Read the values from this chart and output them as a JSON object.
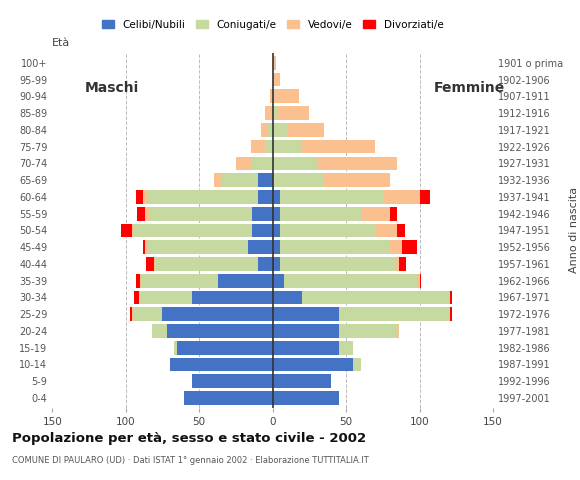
{
  "age_groups": [
    "0-4",
    "5-9",
    "10-14",
    "15-19",
    "20-24",
    "25-29",
    "30-34",
    "35-39",
    "40-44",
    "45-49",
    "50-54",
    "55-59",
    "60-64",
    "65-69",
    "70-74",
    "75-79",
    "80-84",
    "85-89",
    "90-94",
    "95-99",
    "100+"
  ],
  "birth_years": [
    "1997-2001",
    "1992-1996",
    "1987-1991",
    "1982-1986",
    "1977-1981",
    "1972-1976",
    "1967-1971",
    "1962-1966",
    "1957-1961",
    "1952-1956",
    "1947-1951",
    "1942-1946",
    "1937-1941",
    "1932-1936",
    "1927-1931",
    "1922-1926",
    "1917-1921",
    "1912-1916",
    "1907-1911",
    "1902-1906",
    "1901 o prima"
  ],
  "males": {
    "celibi": [
      60,
      55,
      70,
      65,
      72,
      75,
      55,
      37,
      10,
      17,
      14,
      14,
      10,
      10,
      0,
      0,
      0,
      0,
      0,
      0,
      0
    ],
    "coniugati": [
      0,
      0,
      0,
      2,
      10,
      20,
      35,
      52,
      70,
      68,
      80,
      70,
      75,
      25,
      15,
      5,
      3,
      0,
      0,
      0,
      0
    ],
    "vedovi": [
      0,
      0,
      0,
      0,
      0,
      1,
      1,
      1,
      1,
      2,
      2,
      3,
      3,
      5,
      10,
      10,
      5,
      5,
      2,
      0,
      0
    ],
    "divorziati": [
      0,
      0,
      0,
      0,
      0,
      1,
      3,
      3,
      5,
      1,
      7,
      5,
      5,
      0,
      0,
      0,
      0,
      0,
      0,
      0,
      0
    ]
  },
  "females": {
    "celibi": [
      45,
      40,
      55,
      45,
      45,
      45,
      20,
      8,
      5,
      5,
      5,
      5,
      5,
      0,
      0,
      0,
      0,
      0,
      0,
      0,
      0
    ],
    "coniugati": [
      0,
      0,
      5,
      10,
      40,
      75,
      100,
      90,
      78,
      75,
      65,
      55,
      70,
      35,
      30,
      20,
      10,
      3,
      0,
      0,
      0
    ],
    "vedovi": [
      0,
      0,
      0,
      0,
      1,
      1,
      1,
      2,
      3,
      8,
      15,
      20,
      25,
      45,
      55,
      50,
      25,
      22,
      18,
      5,
      2
    ],
    "divorziati": [
      0,
      0,
      0,
      0,
      0,
      1,
      1,
      1,
      5,
      10,
      5,
      5,
      7,
      0,
      0,
      0,
      0,
      0,
      0,
      0,
      0
    ]
  },
  "colors": {
    "celibi": "#4472C4",
    "coniugati": "#C5D9A0",
    "vedovi": "#FAC090",
    "divorziati": "#FF0000"
  },
  "xlim": 150,
  "title": "Popolazione per età, sesso e stato civile - 2002",
  "subtitle": "COMUNE DI PAULARO (UD) · Dati ISTAT 1° gennaio 2002 · Elaborazione TUTTITALIA.IT",
  "ylabel_left": "Età",
  "ylabel_right": "Anno di nascita",
  "label_maschi": "Maschi",
  "label_femmine": "Femmine",
  "legend_labels": [
    "Celibi/Nubili",
    "Coniugati/e",
    "Vedovi/e",
    "Divorziati/e"
  ],
  "bg_color": "#FFFFFF",
  "grid_color": "#BBBBBB"
}
